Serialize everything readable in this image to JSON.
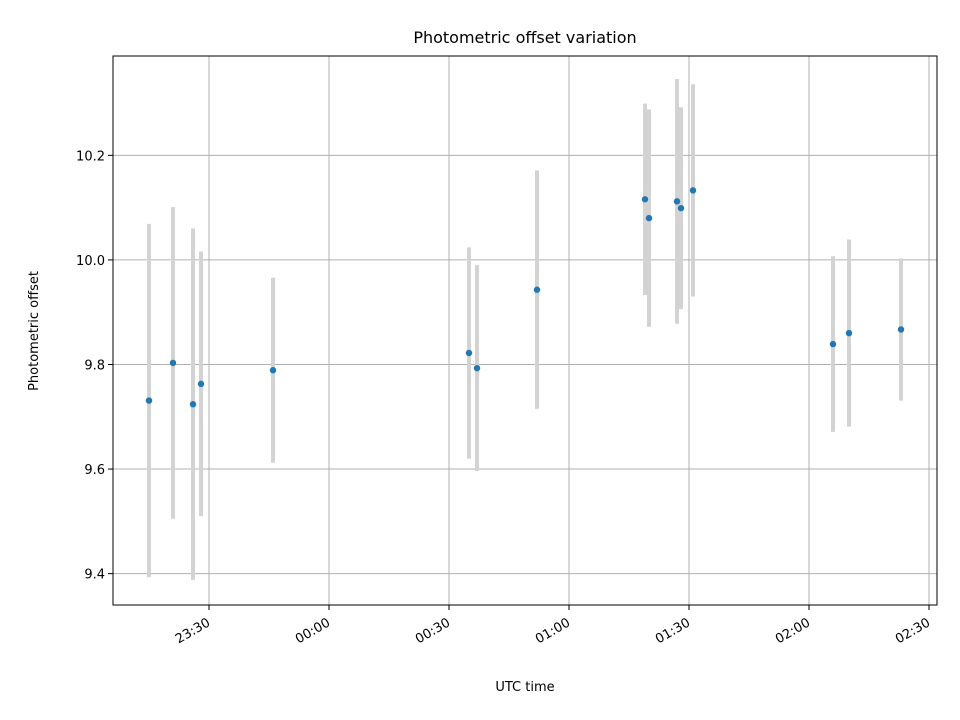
{
  "chart_data": {
    "type": "scatter",
    "title": "Photometric offset variation",
    "xlabel": "UTC time",
    "ylabel": "Photometric offset",
    "x_ticks": [
      "23:30",
      "00:00",
      "00:30",
      "01:00",
      "01:30",
      "02:00",
      "02:30"
    ],
    "y_ticks": [
      "9.4",
      "9.6",
      "9.8",
      "10.0",
      "10.2"
    ],
    "xlim": [
      "23:06",
      "02:32"
    ],
    "ylim": [
      9.34,
      10.39
    ],
    "grid": true,
    "colors": {
      "point": "#1f77b4",
      "errorbar": "#d3d3d3",
      "grid": "#b0b0b0"
    },
    "points": [
      {
        "t": "23:15",
        "y": 9.731,
        "err": 0.338
      },
      {
        "t": "23:21",
        "y": 9.803,
        "err": 0.298
      },
      {
        "t": "23:26",
        "y": 9.724,
        "err": 0.336
      },
      {
        "t": "23:28",
        "y": 9.763,
        "err": 0.253
      },
      {
        "t": "23:46",
        "y": 9.789,
        "err": 0.177
      },
      {
        "t": "00:35",
        "y": 9.822,
        "err": 0.202
      },
      {
        "t": "00:37",
        "y": 9.793,
        "err": 0.197
      },
      {
        "t": "00:52",
        "y": 9.943,
        "err": 0.228
      },
      {
        "t": "01:19",
        "y": 10.116,
        "err": 0.183
      },
      {
        "t": "01:20",
        "y": 10.08,
        "err": 0.208
      },
      {
        "t": "01:27",
        "y": 10.112,
        "err": 0.234
      },
      {
        "t": "01:28",
        "y": 10.099,
        "err": 0.193
      },
      {
        "t": "01:31",
        "y": 10.133,
        "err": 0.203
      },
      {
        "t": "02:06",
        "y": 9.839,
        "err": 0.168
      },
      {
        "t": "02:10",
        "y": 9.86,
        "err": 0.179
      },
      {
        "t": "02:23",
        "y": 9.867,
        "err": 0.136
      }
    ]
  }
}
